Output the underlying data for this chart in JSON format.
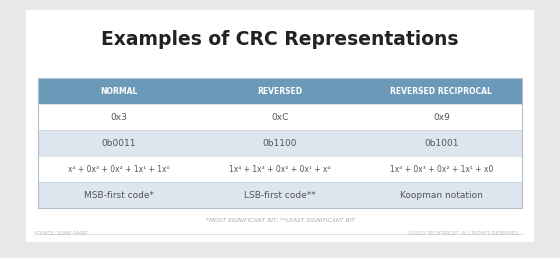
{
  "title": "Examples of CRC Representations",
  "bg_color": "#e8e8e8",
  "card_bg": "#ffffff",
  "header_bg": "#6b9ab8",
  "header_text_color": "#ffffff",
  "row_odd_bg": "#ffffff",
  "row_even_bg": "#dde6ee",
  "body_text_color": "#555555",
  "footnote_color": "#aaaaaa",
  "columns": [
    "NORMAL",
    "REVERSED",
    "REVERSED RECIPROCAL"
  ],
  "rows": [
    [
      "0x3",
      "0xC",
      "0x9"
    ],
    [
      "0b0011",
      "0b1100",
      "0b1001"
    ],
    [
      "x⁴ + 0x³ + 0x² + 1x¹ + 1x⁰",
      "1x⁴ + 1x³ + 0x² + 0x¹ + x⁴",
      "1x⁴ + 0x³ + 0x² + 1x¹ + x0"
    ],
    [
      "MSB-first code*",
      "LSB-first code**",
      "Koopman notation"
    ]
  ],
  "footnote": "*MOST SIGNIFICANT BIT; **LEAST SIGNIFICANT BIT",
  "source_left": "SOURCE: SOME APART",
  "source_right": "©2023 TECHTARGET. ALL RIGHTS RESERVED."
}
